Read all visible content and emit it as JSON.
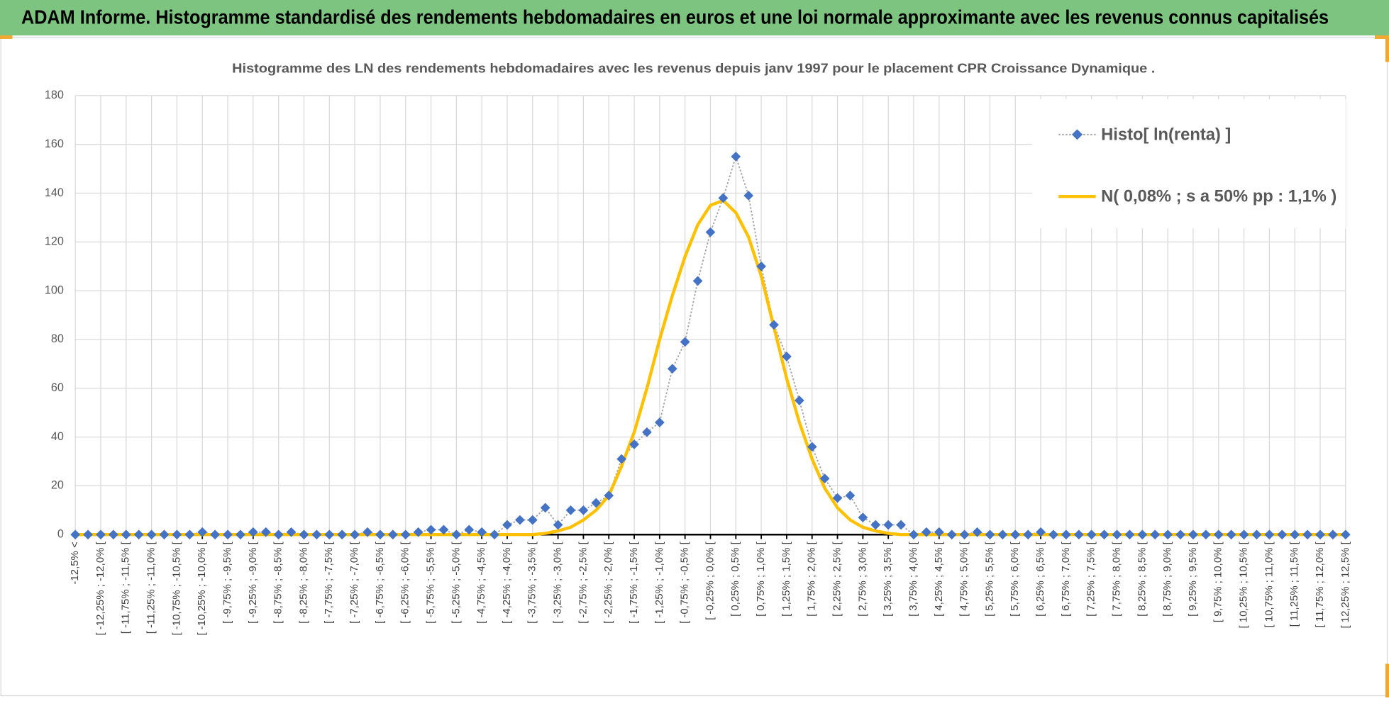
{
  "header": {
    "title": "ADAM Informe. Histogramme standardisé des rendements hebdomadaires en euros et une loi normale approximante avec les revenus connus capitalisés"
  },
  "chart_data": {
    "type": "line",
    "title": "Histogramme des LN des rendements hebdomadaires avec les revenus depuis janv 1997 pour le placement CPR Croissance Dynamique .",
    "categories": [
      "-12,5% <",
      null,
      "[ -12,25% ; -12,0% [",
      null,
      "[ -11,75% ; -11,5% [",
      null,
      "[ -11,25% ; -11,0% [",
      null,
      "[ -10,75% ; -10,5% [",
      null,
      "[ -10,25% ; -10,0% [",
      null,
      "[ -9,75% ; -9,5% [",
      null,
      "[ -9,25% ; -9,0% [",
      null,
      "[ -8,75% ; -8,5% [",
      null,
      "[ -8,25% ; -8,0% [",
      null,
      "[ -7,75% ; -7,5% [",
      null,
      "[ -7,25% ; -7,0% [",
      null,
      "[ -6,75% ; -6,5% [",
      null,
      "[ -6,25% ; -6,0% [",
      null,
      "[ -5,75% ; -5,5% [",
      null,
      "[ -5,25% ; -5,0% [",
      null,
      "[ -4,75% ; -4,5% [",
      null,
      "[ -4,25% ; -4,0% [",
      null,
      "[ -3,75% ; -3,5% [",
      null,
      "[ -3,25% ; -3,0% [",
      null,
      "[ -2,75% ; -2,5% [",
      null,
      "[ -2,25% ; -2,0% [",
      null,
      "[ -1,75% ; -1,5% [",
      null,
      "[ -1,25% ; -1,0% [",
      null,
      "[ -0,75% ; -0,5% [",
      null,
      "[ -0,25% ; 0,0% [",
      null,
      "[ 0,25% ; 0,5% [",
      null,
      "[ 0,75% ; 1,0% [",
      null,
      "[ 1,25% ; 1,5% [",
      null,
      "[ 1,75% ; 2,0% [",
      null,
      "[ 2,25% ; 2,5% [",
      null,
      "[ 2,75% ; 3,0% [",
      null,
      "[ 3,25% ; 3,5% [",
      null,
      "[ 3,75% ; 4,0% [",
      null,
      "[ 4,25% ; 4,5% [",
      null,
      "[ 4,75% ; 5,0% [",
      null,
      "[ 5,25% ; 5,5% [",
      null,
      "[ 5,75% ; 6,0% [",
      null,
      "[ 6,25% ; 6,5% [",
      null,
      "[ 6,75% ; 7,0% [",
      null,
      "[ 7,25% ; 7,5% [",
      null,
      "[ 7,75% ; 8,0% [",
      null,
      "[ 8,25% ; 8,5% [",
      null,
      "[ 8,75% ; 9,0% [",
      null,
      "[ 9,25% ; 9,5% [",
      null,
      "[ 9,75% ; 10,0% [",
      null,
      "[ 10,25% ; 10,5% [",
      null,
      "[ 10,75% ; 11,0% [",
      null,
      "[ 11,25% ; 11,5% [",
      null,
      "[ 11,75% ; 12,0% [",
      null,
      "[ 12,25% ; 12,5% ["
    ],
    "series": [
      {
        "name": "Histo[ ln(renta) ]",
        "color": "#4472c4",
        "line_color": "#a5a5a5",
        "marker": "diamond",
        "values": [
          0,
          0,
          0,
          0,
          0,
          0,
          0,
          0,
          0,
          0,
          1,
          0,
          0,
          0,
          1,
          1,
          0,
          1,
          0,
          0,
          0,
          0,
          0,
          1,
          0,
          0,
          0,
          1,
          2,
          2,
          0,
          2,
          1,
          0,
          4,
          6,
          6,
          11,
          4,
          10,
          10,
          13,
          16,
          31,
          37,
          42,
          46,
          68,
          79,
          104,
          124,
          138,
          155,
          139,
          110,
          86,
          73,
          55,
          36,
          23,
          15,
          16,
          7,
          4,
          4,
          4,
          0,
          1,
          1,
          0,
          0,
          1,
          0,
          0,
          0,
          0,
          1,
          0,
          0,
          0,
          0,
          0,
          0,
          0,
          0,
          0,
          0,
          0,
          0,
          0,
          0,
          0,
          0,
          0,
          0,
          0,
          0,
          0,
          0,
          0,
          0
        ]
      },
      {
        "name": "N( 0,08% ; s a 50% pp : 1,1% )",
        "color": "#ffc000",
        "marker": "none",
        "values": [
          0,
          0,
          0,
          0,
          0,
          0,
          0,
          0,
          0,
          0,
          0,
          0,
          0,
          0,
          0,
          0,
          0,
          0,
          0,
          0,
          0,
          0,
          0,
          0,
          0,
          0,
          0,
          0,
          0,
          0,
          0,
          0,
          0,
          0,
          0,
          0,
          0,
          0.5,
          1.5,
          3,
          6,
          10,
          16,
          28,
          42,
          60,
          80,
          98,
          114,
          127,
          135,
          137,
          132,
          122,
          106,
          85,
          64,
          46,
          31,
          19,
          11,
          6,
          3,
          1.5,
          0.5,
          0,
          0,
          0,
          0,
          0,
          0,
          0,
          0,
          0,
          0,
          0,
          0,
          0,
          0,
          0,
          0,
          0,
          0,
          0,
          0,
          0,
          0,
          0,
          0,
          0,
          0,
          0,
          0,
          0,
          0,
          0,
          0,
          0,
          0,
          0,
          0
        ]
      }
    ],
    "ylim": [
      0,
      180
    ],
    "yticks": [
      0,
      20,
      40,
      60,
      80,
      100,
      120,
      140,
      160,
      180
    ],
    "grid": true,
    "legend": "top-right"
  }
}
